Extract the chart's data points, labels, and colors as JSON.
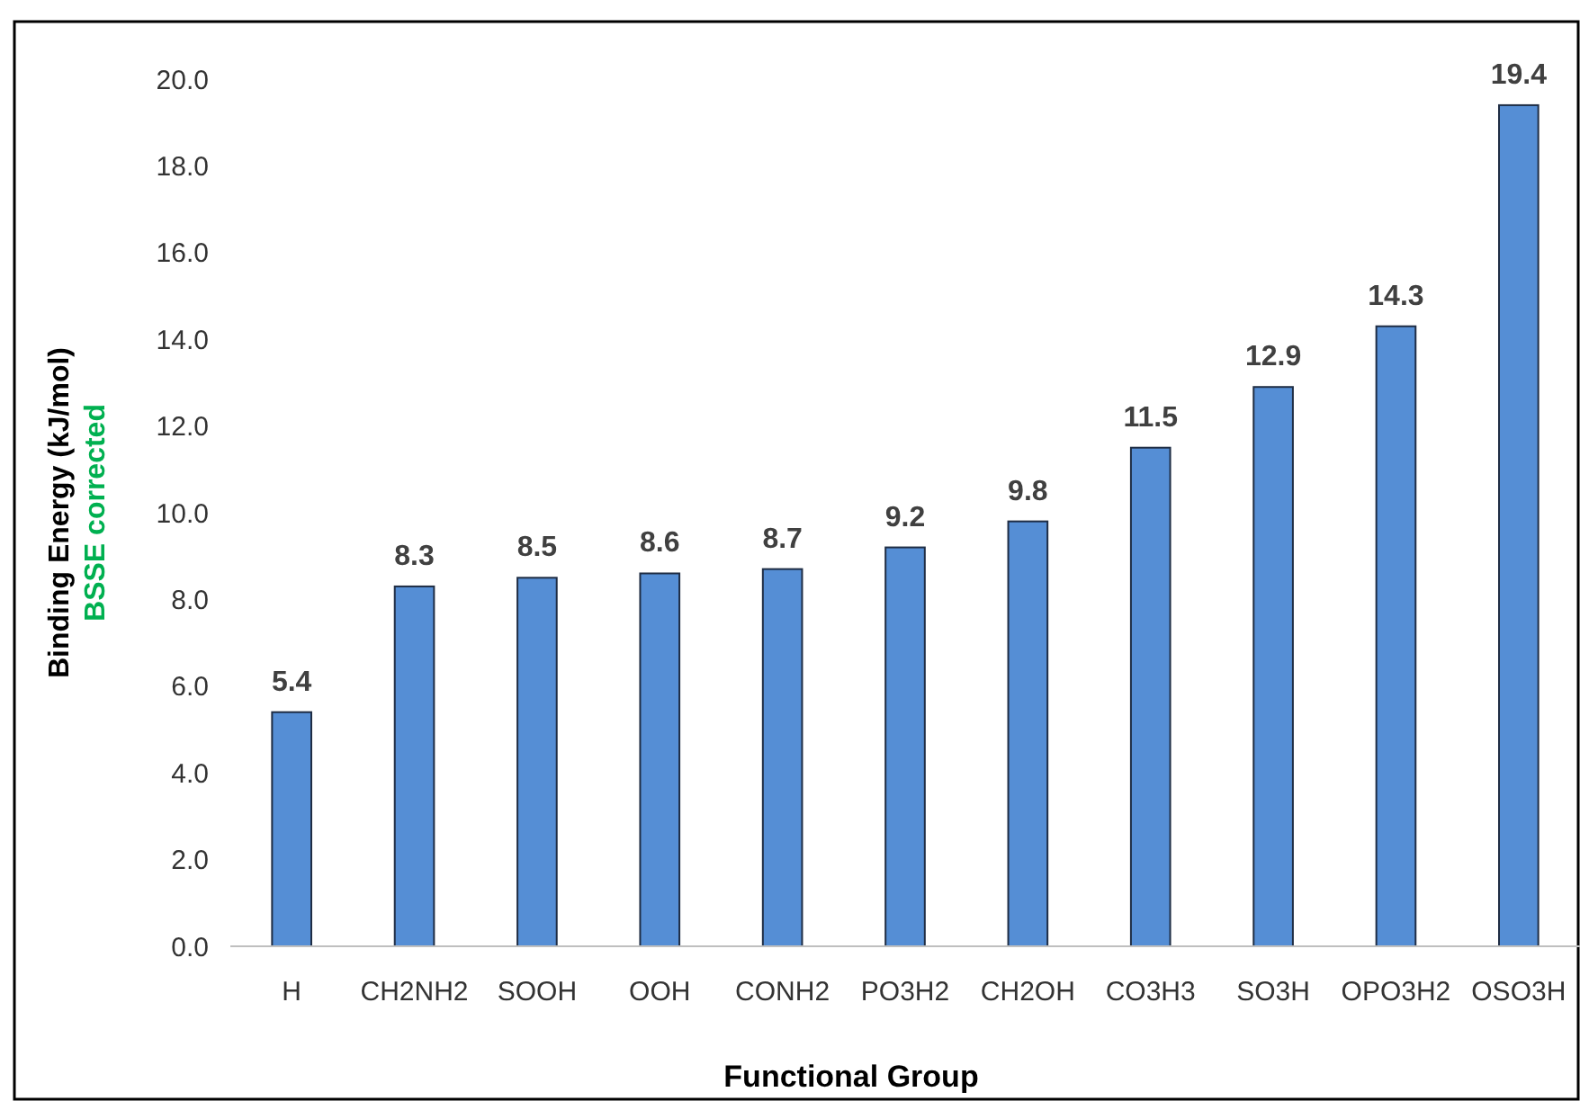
{
  "chart_data": {
    "type": "bar",
    "xlabel": "Functional Group",
    "ylabel": "Binding Energy (kJ/mol)",
    "annotations": [
      "BSSE corrected"
    ],
    "categories": [
      "H",
      "CH2NH2",
      "SOOH",
      "OOH",
      "CONH2",
      "PO3H2",
      "CH2OH",
      "CO3H3",
      "SO3H",
      "OPO3H2",
      "OSO3H"
    ],
    "values": [
      5.4,
      8.3,
      8.5,
      8.6,
      8.7,
      9.2,
      9.8,
      11.5,
      12.9,
      14.3,
      19.4
    ],
    "color": "#558ed5",
    "ylim": [
      0,
      20
    ],
    "yticks": [
      {
        "value": 0,
        "label": "0.0"
      },
      {
        "value": 2,
        "label": "2.0"
      },
      {
        "value": 4,
        "label": "4.0"
      },
      {
        "value": 6,
        "label": "6.0"
      },
      {
        "value": 8,
        "label": "8.0"
      },
      {
        "value": 10,
        "label": "10.0"
      },
      {
        "value": 12,
        "label": "12.0"
      },
      {
        "value": 14,
        "label": "14.0"
      },
      {
        "value": 16,
        "label": "16.0"
      },
      {
        "value": 18,
        "label": "18.0"
      },
      {
        "value": 20,
        "label": "20.0"
      }
    ],
    "grid": false,
    "data_labels": true
  }
}
